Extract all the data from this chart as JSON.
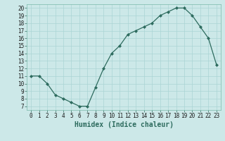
{
  "x": [
    0,
    1,
    2,
    3,
    4,
    5,
    6,
    7,
    8,
    9,
    10,
    11,
    12,
    13,
    14,
    15,
    16,
    17,
    18,
    19,
    20,
    21,
    22,
    23
  ],
  "y": [
    11,
    11,
    10,
    8.5,
    8,
    7.5,
    7,
    7,
    9.5,
    12,
    14,
    15,
    16.5,
    17,
    17.5,
    18,
    19,
    19.5,
    20,
    20,
    19,
    17.5,
    16,
    12.5
  ],
  "line_color": "#2d6b5e",
  "marker": "D",
  "marker_size": 2,
  "bg_color": "#cce8e8",
  "grid_color": "#aad4d4",
  "xlabel": "Humidex (Indice chaleur)",
  "xlim": [
    -0.5,
    23.5
  ],
  "ylim": [
    6.5,
    20.5
  ],
  "yticks": [
    7,
    8,
    9,
    10,
    11,
    12,
    13,
    14,
    15,
    16,
    17,
    18,
    19,
    20
  ],
  "xticks": [
    0,
    1,
    2,
    3,
    4,
    5,
    6,
    7,
    8,
    9,
    10,
    11,
    12,
    13,
    14,
    15,
    16,
    17,
    18,
    19,
    20,
    21,
    22,
    23
  ],
  "tick_label_size": 5.5,
  "xlabel_size": 7
}
